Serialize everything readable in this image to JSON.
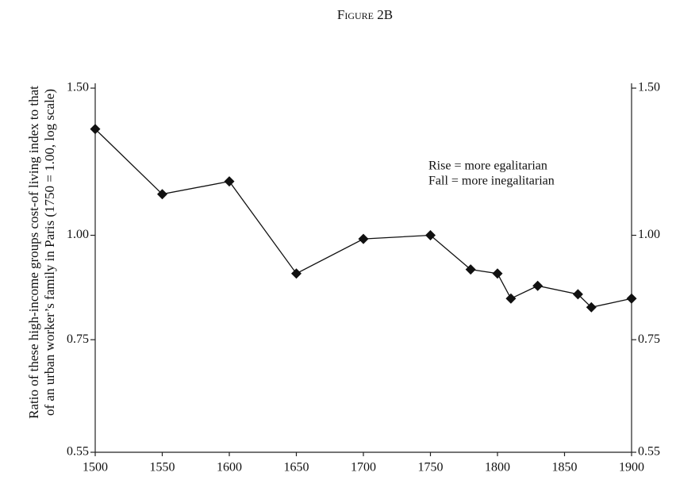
{
  "chart_data": {
    "type": "line",
    "title": "Figure 2B",
    "ylabel": [
      "Ratio of these high-income groups cost-of living index to that",
      "of an urban worker’s family in Paris (1750 = 1.00, log scale)"
    ],
    "annotations": [
      "Rise = more egalitarian",
      "Fall = more inegalitarian"
    ],
    "x": [
      1500,
      1550,
      1600,
      1650,
      1700,
      1750,
      1780,
      1800,
      1810,
      1830,
      1860,
      1870,
      1900
    ],
    "series": [
      {
        "name": "Ratio",
        "color": "#111111",
        "values": [
          1.34,
          1.12,
          1.16,
          0.9,
          0.99,
          1.0,
          0.91,
          0.9,
          0.84,
          0.87,
          0.85,
          0.82,
          0.84
        ]
      }
    ],
    "xlim": [
      1500,
      1900
    ],
    "xticks": [
      1500,
      1550,
      1600,
      1650,
      1700,
      1750,
      1800,
      1850,
      1900
    ],
    "ylim": [
      0.55,
      1.52
    ],
    "yticks": [
      {
        "value": 1.5,
        "label": "1.50"
      },
      {
        "value": 1,
        "label": "1.00"
      },
      {
        "value": 0.75,
        "label": "0.75"
      },
      {
        "value": 0.55,
        "label": "0.55"
      }
    ],
    "ylog": true,
    "mirror_y_axis": true
  }
}
